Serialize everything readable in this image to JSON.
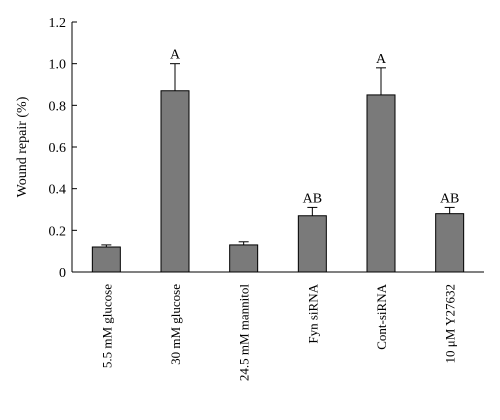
{
  "chart_data": {
    "type": "bar",
    "title": "",
    "xlabel": "",
    "ylabel": "Wound repair (%)",
    "ylim": [
      0,
      1.2
    ],
    "yticks": [
      "0",
      "0.2",
      "0.4",
      "0.6",
      "0.8",
      "1.0",
      "1.2"
    ],
    "categories": [
      "5.5 mM glucose",
      "30 mM glucose",
      "24.5 mM mannitol",
      "Fyn siRNA",
      "Cont-siRNA",
      "10 μM Y27632"
    ],
    "values": [
      0.12,
      0.87,
      0.13,
      0.27,
      0.85,
      0.28
    ],
    "errors": [
      0.01,
      0.13,
      0.015,
      0.04,
      0.13,
      0.03
    ],
    "labels": [
      "",
      "A",
      "",
      "AB",
      "A",
      "AB"
    ],
    "grid": false,
    "bar_color": "#7a7a7a"
  }
}
